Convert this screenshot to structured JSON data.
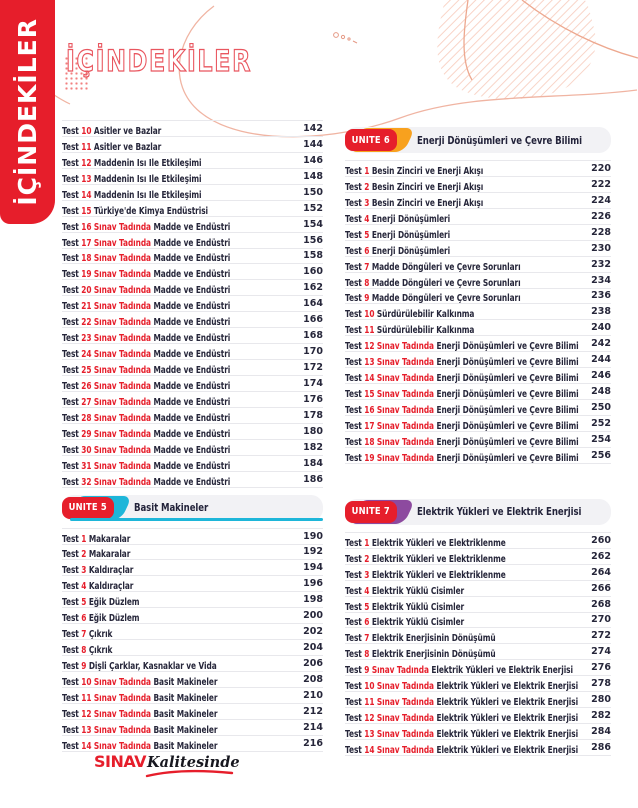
{
  "sidebar": {
    "title": "İÇİNDEKİLER"
  },
  "header": {
    "title": "İÇİNDEKİLER"
  },
  "footer": {
    "brand_primary": "SINAV",
    "brand_secondary": "Kalitesinde"
  },
  "colors": {
    "red_accent": "#e61e2b",
    "dark_text": "#26263a",
    "unit5_teal": "#1eb6d9",
    "unit6_orange": "#f8a11e",
    "unit7_purple": "#8d4a9f",
    "header_bar_gray": "#f2f2f5",
    "separator_gray": "#e8e8ec",
    "deco_salmon": "#f0b4a2"
  },
  "toc": {
    "row_prefix": "Test",
    "columns": [
      {
        "sections": [
          {
            "unit": null,
            "rows": [
              {
                "num": "10",
                "tag": "",
                "title": "Asitler ve Bazlar",
                "page": "142"
              },
              {
                "num": "11",
                "tag": "",
                "title": "Asitler ve Bazlar",
                "page": "144"
              },
              {
                "num": "12",
                "tag": "",
                "title": "Maddenin Isı İle Etkileşimi",
                "page": "146"
              },
              {
                "num": "13",
                "tag": "",
                "title": "Maddenin Isı İle Etkileşimi",
                "page": "148"
              },
              {
                "num": "14",
                "tag": "",
                "title": "Maddenin Isı İle Etkileşimi",
                "page": "150"
              },
              {
                "num": "15",
                "tag": "",
                "title": "Türkiye'de Kimya Endüstrisi",
                "page": "152"
              },
              {
                "num": "16",
                "tag": "Sınav Tadında",
                "title": "Madde ve Endüstri",
                "page": "154"
              },
              {
                "num": "17",
                "tag": "Sınav Tadında",
                "title": "Madde ve Endüstri",
                "page": "156"
              },
              {
                "num": "18",
                "tag": "Sınav Tadında",
                "title": "Madde ve Endüstri",
                "page": "158"
              },
              {
                "num": "19",
                "tag": "Sınav Tadında",
                "title": "Madde ve Endüstri",
                "page": "160"
              },
              {
                "num": "20",
                "tag": "Sınav Tadında",
                "title": "Madde ve Endüstri",
                "page": "162"
              },
              {
                "num": "21",
                "tag": "Sınav Tadında",
                "title": "Madde ve Endüstri",
                "page": "164"
              },
              {
                "num": "22",
                "tag": "Sınav Tadında",
                "title": "Madde ve Endüstri",
                "page": "166"
              },
              {
                "num": "23",
                "tag": "Sınav Tadında",
                "title": "Madde ve Endüstri",
                "page": "168"
              },
              {
                "num": "24",
                "tag": "Sınav Tadında",
                "title": "Madde ve Endüstri",
                "page": "170"
              },
              {
                "num": "25",
                "tag": "Sınav Tadında",
                "title": "Madde ve Endüstri",
                "page": "172"
              },
              {
                "num": "26",
                "tag": "Sınav Tadında",
                "title": "Madde ve Endüstri",
                "page": "174"
              },
              {
                "num": "27",
                "tag": "Sınav Tadında",
                "title": "Madde ve Endüstri",
                "page": "176"
              },
              {
                "num": "28",
                "tag": "Sınav Tadında",
                "title": "Madde ve Endüstri",
                "page": "178"
              },
              {
                "num": "29",
                "tag": "Sınav Tadında",
                "title": "Madde ve Endüstri",
                "page": "180"
              },
              {
                "num": "30",
                "tag": "Sınav Tadında",
                "title": "Madde ve Endüstri",
                "page": "182"
              },
              {
                "num": "31",
                "tag": "Sınav Tadında",
                "title": "Madde ve Endüstri",
                "page": "184"
              },
              {
                "num": "32",
                "tag": "Sınav Tadında",
                "title": "Madde ve Endüstri",
                "page": "186"
              }
            ]
          },
          {
            "unit": {
              "label": "ÜNİTE 5",
              "title": "Basit Makineler",
              "accent": "#1eb6d9",
              "underline": true
            },
            "rows": [
              {
                "num": "1",
                "tag": "",
                "title": "Makaralar",
                "page": "190"
              },
              {
                "num": "2",
                "tag": "",
                "title": "Makaralar",
                "page": "192"
              },
              {
                "num": "3",
                "tag": "",
                "title": "Kaldıraçlar",
                "page": "194"
              },
              {
                "num": "4",
                "tag": "",
                "title": "Kaldıraçlar",
                "page": "196"
              },
              {
                "num": "5",
                "tag": "",
                "title": "Eğik Düzlem",
                "page": "198"
              },
              {
                "num": "6",
                "tag": "",
                "title": "Eğik Düzlem",
                "page": "200"
              },
              {
                "num": "7",
                "tag": "",
                "title": "Çıkrık",
                "page": "202"
              },
              {
                "num": "8",
                "tag": "",
                "title": "Çıkrık",
                "page": "204"
              },
              {
                "num": "9",
                "tag": "",
                "title": "Dişli Çarklar, Kasnaklar ve Vida",
                "page": "206"
              },
              {
                "num": "10",
                "tag": "Sınav Tadında",
                "title": "Basit Makineler",
                "page": "208"
              },
              {
                "num": "11",
                "tag": "Sınav Tadında",
                "title": "Basit Makineler",
                "page": "210"
              },
              {
                "num": "12",
                "tag": "Sınav Tadında",
                "title": "Basit Makineler",
                "page": "212"
              },
              {
                "num": "13",
                "tag": "Sınav Tadında",
                "title": "Basit Makineler",
                "page": "214"
              },
              {
                "num": "14",
                "tag": "Sınav Tadında",
                "title": "Basit Makineler",
                "page": "216"
              }
            ]
          }
        ]
      },
      {
        "sections": [
          {
            "unit": {
              "label": "ÜNİTE 6",
              "title": "Enerji Dönüşümleri ve Çevre Bilimi",
              "accent": "#f8a11e",
              "underline": false
            },
            "rows": [
              {
                "num": "1",
                "tag": "",
                "title": "Besin Zinciri ve Enerji Akışı",
                "page": "220"
              },
              {
                "num": "2",
                "tag": "",
                "title": "Besin Zinciri ve Enerji Akışı",
                "page": "222"
              },
              {
                "num": "3",
                "tag": "",
                "title": "Besin Zinciri ve Enerji Akışı",
                "page": "224"
              },
              {
                "num": "4",
                "tag": "",
                "title": "Enerji Dönüşümleri",
                "page": "226"
              },
              {
                "num": "5",
                "tag": "",
                "title": "Enerji Dönüşümleri",
                "page": "228"
              },
              {
                "num": "6",
                "tag": "",
                "title": "Enerji Dönüşümleri",
                "page": "230"
              },
              {
                "num": "7",
                "tag": "",
                "title": "Madde Döngüleri ve Çevre Sorunları",
                "page": "232"
              },
              {
                "num": "8",
                "tag": "",
                "title": "Madde Döngüleri ve Çevre Sorunları",
                "page": "234"
              },
              {
                "num": "9",
                "tag": "",
                "title": "Madde Döngüleri ve Çevre Sorunları",
                "page": "236"
              },
              {
                "num": "10",
                "tag": "",
                "title": "Sürdürülebilir Kalkınma",
                "page": "238"
              },
              {
                "num": "11",
                "tag": "",
                "title": "Sürdürülebilir Kalkınma",
                "page": "240"
              },
              {
                "num": "12",
                "tag": "Sınav Tadında",
                "title": "Enerji Dönüşümleri ve Çevre Bilimi",
                "page": "242"
              },
              {
                "num": "13",
                "tag": "Sınav Tadında",
                "title": "Enerji Dönüşümleri ve Çevre Bilimi",
                "page": "244"
              },
              {
                "num": "14",
                "tag": "Sınav Tadında",
                "title": "Enerji Dönüşümleri ve Çevre Bilimi",
                "page": "246"
              },
              {
                "num": "15",
                "tag": "Sınav Tadında",
                "title": "Enerji Dönüşümleri ve Çevre Bilimi",
                "page": "248"
              },
              {
                "num": "16",
                "tag": "Sınav Tadında",
                "title": "Enerji Dönüşümleri ve Çevre Bilimi",
                "page": "250"
              },
              {
                "num": "17",
                "tag": "Sınav Tadında",
                "title": "Enerji Dönüşümleri ve Çevre Bilimi",
                "page": "252"
              },
              {
                "num": "18",
                "tag": "Sınav Tadında",
                "title": "Enerji Dönüşümleri ve Çevre Bilimi",
                "page": "254"
              },
              {
                "num": "19",
                "tag": "Sınav Tadında",
                "title": "Enerji Dönüşümleri ve Çevre Bilimi",
                "page": "256"
              }
            ]
          },
          {
            "unit": {
              "label": "ÜNİTE 7",
              "title": "Elektrik Yükleri ve Elektrik Enerjisi",
              "accent": "#8d4a9f",
              "underline": false
            },
            "rows": [
              {
                "num": "1",
                "tag": "",
                "title": "Elektrik Yükleri ve Elektriklenme",
                "page": "260"
              },
              {
                "num": "2",
                "tag": "",
                "title": "Elektrik Yükleri ve Elektriklenme",
                "page": "262"
              },
              {
                "num": "3",
                "tag": "",
                "title": "Elektrik Yükleri ve Elektriklenme",
                "page": "264"
              },
              {
                "num": "4",
                "tag": "",
                "title": "Elektrik Yüklü Cisimler",
                "page": "266"
              },
              {
                "num": "5",
                "tag": "",
                "title": "Elektrik Yüklü Cisimler",
                "page": "268"
              },
              {
                "num": "6",
                "tag": "",
                "title": "Elektrik Yüklü Cisimler",
                "page": "270"
              },
              {
                "num": "7",
                "tag": "",
                "title": "Elektrik Enerjisinin Dönüşümü",
                "page": "272"
              },
              {
                "num": "8",
                "tag": "",
                "title": "Elektrik Enerjisinin Dönüşümü",
                "page": "274"
              },
              {
                "num": "9",
                "tag": "Sınav Tadında",
                "title": "Elektrik Yükleri ve Elektrik Enerjisi",
                "page": "276"
              },
              {
                "num": "10",
                "tag": "Sınav Tadında",
                "title": "Elektrik Yükleri ve Elektrik Enerjisi",
                "page": "278"
              },
              {
                "num": "11",
                "tag": "Sınav Tadında",
                "title": "Elektrik Yükleri ve Elektrik Enerjisi",
                "page": "280"
              },
              {
                "num": "12",
                "tag": "Sınav Tadında",
                "title": "Elektrik Yükleri ve Elektrik Enerjisi",
                "page": "282"
              },
              {
                "num": "13",
                "tag": "Sınav Tadında",
                "title": "Elektrik Yükleri ve Elektrik Enerjisi",
                "page": "284"
              },
              {
                "num": "14",
                "tag": "Sınav Tadında",
                "title": "Elektrik Yükleri ve Elektrik Enerjisi",
                "page": "286"
              }
            ]
          }
        ]
      }
    ]
  }
}
